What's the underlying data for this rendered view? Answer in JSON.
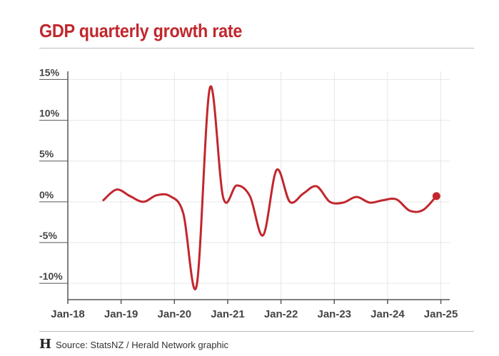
{
  "title": "GDP quarterly growth rate",
  "source": "Source: StatsNZ / Herald Network graphic",
  "logo": "H",
  "colors": {
    "title": "#c1272d",
    "line": "#c1272d",
    "grid": "#e6e6e6",
    "axis": "#555555",
    "text": "#444444"
  },
  "chart_data": {
    "type": "line",
    "title": "GDP quarterly growth rate",
    "xlabel": "",
    "ylabel": "",
    "ylim": [
      -12,
      16
    ],
    "xlim": [
      "2018-01",
      "2025-03"
    ],
    "grid": true,
    "legend": "none",
    "y_ticks": [
      {
        "value": 15,
        "label": "15%"
      },
      {
        "value": 10,
        "label": "10%"
      },
      {
        "value": 5,
        "label": "5%"
      },
      {
        "value": 0,
        "label": "0%"
      },
      {
        "value": -5,
        "label": "-5%"
      },
      {
        "value": -10,
        "label": "-10%"
      }
    ],
    "x_ticks": [
      {
        "value": "2018-01",
        "label": "Jan-18"
      },
      {
        "value": "2019-01",
        "label": "Jan-19"
      },
      {
        "value": "2020-01",
        "label": "Jan-20"
      },
      {
        "value": "2021-01",
        "label": "Jan-21"
      },
      {
        "value": "2022-01",
        "label": "Jan-22"
      },
      {
        "value": "2023-01",
        "label": "Jan-23"
      },
      {
        "value": "2024-01",
        "label": "Jan-24"
      },
      {
        "value": "2025-01",
        "label": "Jan-25"
      }
    ],
    "series": [
      {
        "x": [
          "2018-09",
          "2018-12",
          "2019-03",
          "2019-06",
          "2019-09",
          "2019-12",
          "2020-03",
          "2020-06",
          "2020-09",
          "2020-12",
          "2021-03",
          "2021-06",
          "2021-09",
          "2021-12",
          "2022-03",
          "2022-06",
          "2022-09",
          "2022-12",
          "2023-03",
          "2023-06",
          "2023-09",
          "2023-12",
          "2024-03",
          "2024-06",
          "2024-09",
          "2024-12"
        ],
        "values": [
          0.2,
          1.5,
          0.7,
          0.0,
          0.8,
          0.7,
          -1.4,
          -10.3,
          14.0,
          0.5,
          2.0,
          0.7,
          -4.1,
          3.9,
          0.0,
          1.0,
          1.9,
          0.0,
          -0.1,
          0.6,
          -0.1,
          0.2,
          0.3,
          -1.1,
          -1.0,
          0.7
        ]
      }
    ]
  }
}
